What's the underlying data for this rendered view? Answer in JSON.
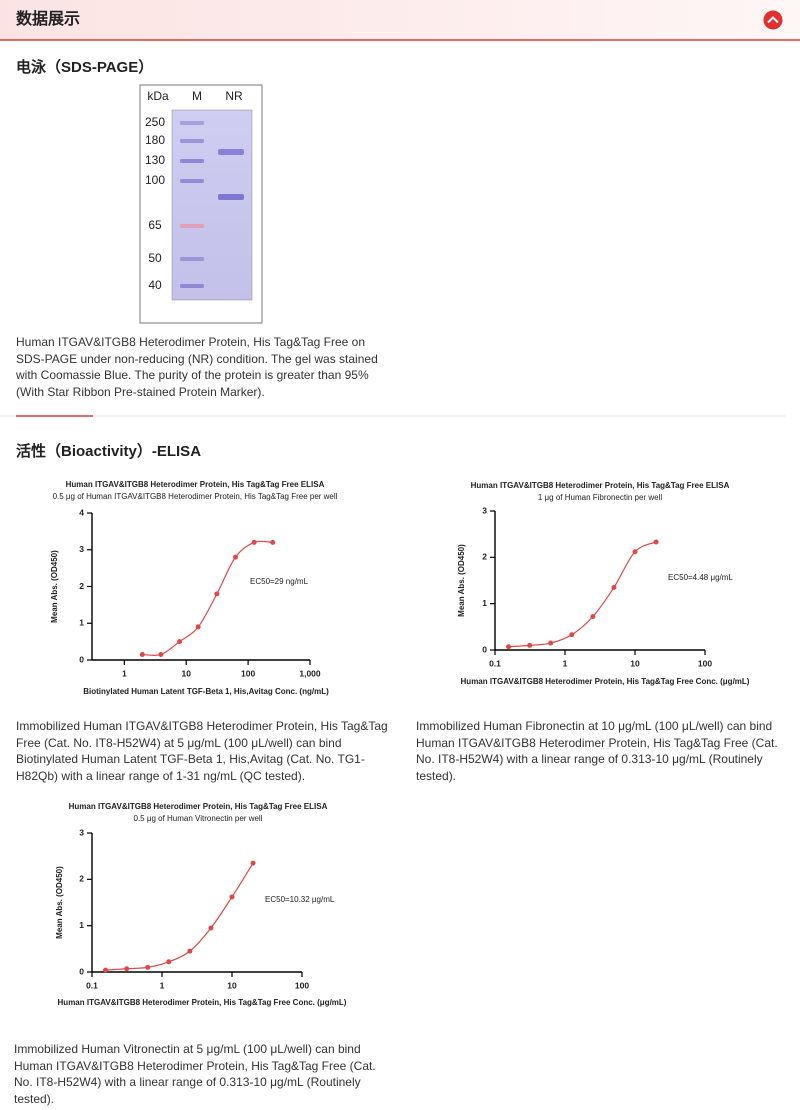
{
  "header": {
    "title": "数据展示"
  },
  "sds": {
    "title": "电泳（SDS-PAGE）",
    "columns": [
      "kDa",
      "M",
      "NR"
    ],
    "markers": [
      250,
      180,
      130,
      100,
      65,
      50,
      40
    ],
    "caption": "Human ITGAV&ITGB8 Heterodimer Protein, His Tag&Tag Free on SDS-PAGE under non-reducing (NR) condition. The gel was stained with Coomassie Blue. The purity of the protein is greater than 95% (With Star Ribbon Pre-stained Protein Marker)."
  },
  "bioactivity": {
    "title": "活性（Bioactivity）-ELISA",
    "captions": [
      "Immobilized Human ITGAV&ITGB8 Heterodimer Protein, His Tag&Tag Free (Cat. No. IT8-H52W4) at 5 μg/mL (100 μL/well) can bind Biotinylated Human Latent TGF-Beta 1, His,Avitag (Cat. No. TG1-H82Qb) with a linear range of 1-31 ng/mL (QC tested).",
      "Immobilized Human Fibronectin at 10 μg/mL (100 μL/well) can bind Human ITGAV&ITGB8 Heterodimer Protein, His Tag&Tag Free (Cat. No. IT8-H52W4) with a linear range of 0.313-10 μg/mL (Routinely tested).",
      "Immobilized Human Vitronectin at 5 μg/mL (100 μL/well) can bind Human ITGAV&ITGB8 Heterodimer Protein, His Tag&Tag Free (Cat. No. IT8-H52W4) with a linear range of 0.313-10 μg/mL (Routinely tested)."
    ]
  },
  "chart_data": [
    {
      "type": "scatter",
      "title": "Human ITGAV&ITGB8 Heterodimer Protein, His Tag&Tag Free ELISA",
      "subtitle": "0.5 μg of Human ITGAV&ITGB8 Heterodimer Protein, His Tag&Tag Free per well",
      "x_label": "Biotinylated Human Latent TGF-Beta 1, His,Avitag Conc. (ng/mL)",
      "y_label": "Mean Abs. (OD450)",
      "annotation": "EC50=29 ng/mL",
      "color": "#e04848",
      "x": [
        1.95,
        3.9,
        7.8,
        15.6,
        31.3,
        62.5,
        125,
        250
      ],
      "values": [
        0.15,
        0.15,
        0.5,
        0.9,
        1.8,
        2.8,
        3.2,
        3.2
      ],
      "xscale": "log",
      "xlim": [
        0.3,
        1000
      ],
      "xticks": [
        1,
        10,
        100,
        {
          "value": 1000,
          "label": "1,000"
        }
      ],
      "ylim": [
        0,
        4
      ],
      "yticks": [
        0,
        1,
        2,
        3,
        4
      ]
    },
    {
      "type": "scatter",
      "title": "Human ITGAV&ITGB8 Heterodimer Protein, His Tag&Tag Free ELISA",
      "subtitle": "1 μg of Human Fibronectin per well",
      "x_label": "Human ITGAV&ITGB8 Heterodimer Protein, His Tag&Tag Free Conc. (μg/mL)",
      "y_label": "Mean Abs. (OD450)",
      "annotation": "EC50=4.48 μg/mL",
      "color": "#e04848",
      "x": [
        0.156,
        0.313,
        0.625,
        1.25,
        2.5,
        5,
        10,
        20
      ],
      "values": [
        0.07,
        0.1,
        0.15,
        0.33,
        0.72,
        1.35,
        2.12,
        2.33
      ],
      "xscale": "log",
      "xlim": [
        0.1,
        100
      ],
      "xticks": [
        0.1,
        1,
        10,
        100
      ],
      "ylim": [
        0,
        3
      ],
      "yticks": [
        0,
        1,
        2,
        3
      ]
    },
    {
      "type": "scatter",
      "title": "Human ITGAV&ITGB8 Heterodimer Protein, His Tag&Tag Free ELISA",
      "subtitle": "0.5 μg of Human Vitronectin per well",
      "x_label": "Human ITGAV&ITGB8 Heterodimer Protein, His Tag&Tag Free Conc. (μg/mL)",
      "y_label": "Mean Abs. (OD450)",
      "annotation": "EC50=10.32 μg/mL",
      "color": "#e04848",
      "x": [
        0.156,
        0.313,
        0.625,
        1.25,
        2.5,
        5,
        10,
        20
      ],
      "values": [
        0.04,
        0.07,
        0.1,
        0.22,
        0.45,
        0.95,
        1.62,
        2.35
      ],
      "xscale": "log",
      "xlim": [
        0.1,
        100
      ],
      "xticks": [
        0.1,
        1,
        10,
        100
      ],
      "ylim": [
        0,
        3
      ],
      "yticks": [
        0,
        1,
        2,
        3
      ]
    }
  ]
}
